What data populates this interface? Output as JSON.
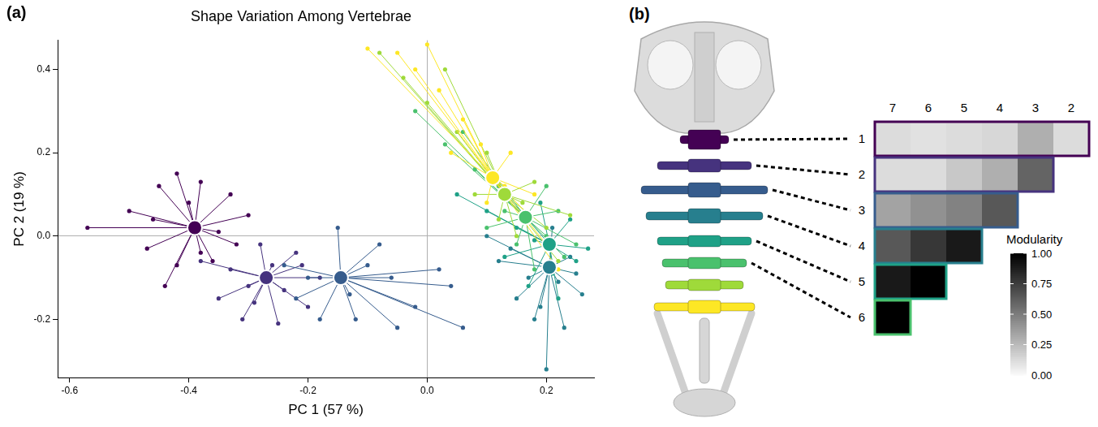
{
  "chart_data": [
    {
      "panel": "(a)",
      "type": "scatter",
      "title": "Shape Variation Among Vertebrae",
      "x_label": "PC 1 (57 %)",
      "y_label": "PC 2 (19 %)",
      "xlim": [
        -0.62,
        0.28
      ],
      "ylim": [
        -0.34,
        0.47
      ],
      "xticks": [
        -0.6,
        -0.4,
        -0.2,
        {
          "value": 0,
          "label": "0.0"
        },
        0.2
      ],
      "yticks": [
        -0.2,
        {
          "value": 0,
          "label": "0.0"
        },
        0.2,
        0.4
      ],
      "marker": "circle",
      "series": [
        {
          "color": "#440154",
          "centroid": [
            -0.39,
            0.02
          ],
          "x": [
            -0.57,
            -0.5,
            -0.45,
            -0.42,
            -0.38,
            -0.33,
            -0.3,
            -0.32,
            -0.36,
            -0.42,
            -0.47,
            -0.44,
            -0.38,
            -0.4,
            -0.35,
            -0.46
          ],
          "y": [
            0.02,
            0.06,
            0.12,
            0.15,
            0.13,
            0.1,
            0.05,
            -0.02,
            -0.06,
            -0.07,
            -0.03,
            -0.12,
            -0.04,
            0.08,
            0.01,
            0.04
          ]
        },
        {
          "color": "#46337E",
          "centroid": [
            -0.27,
            -0.1
          ],
          "x": [
            -0.38,
            -0.35,
            -0.31,
            -0.25,
            -0.2,
            -0.18,
            -0.22,
            -0.28,
            -0.3,
            -0.24,
            -0.33,
            -0.26,
            -0.21,
            -0.29
          ],
          "y": [
            -0.06,
            -0.15,
            -0.2,
            -0.21,
            -0.17,
            -0.1,
            -0.04,
            -0.02,
            -0.12,
            -0.13,
            -0.08,
            -0.07,
            -0.07,
            -0.16
          ]
        },
        {
          "color": "#365C8D",
          "centroid": [
            -0.145,
            -0.1
          ],
          "x": [
            -0.24,
            -0.22,
            -0.18,
            -0.12,
            -0.05,
            -0.02,
            0.04,
            0.02,
            -0.08,
            -0.15,
            -0.13,
            -0.1,
            -0.2,
            -0.06,
            0.06
          ],
          "y": [
            -0.07,
            -0.15,
            -0.2,
            -0.2,
            -0.22,
            -0.17,
            -0.12,
            -0.08,
            -0.02,
            0.02,
            -0.14,
            -0.07,
            -0.1,
            -0.1,
            -0.22
          ]
        },
        {
          "color": "#277F8E",
          "centroid": [
            0.205,
            -0.075
          ],
          "x": [
            0.1,
            0.12,
            0.15,
            0.18,
            0.2,
            0.23,
            0.26,
            0.24,
            0.21,
            0.17,
            0.22,
            0.14,
            0.19,
            0.25
          ],
          "y": [
            0.0,
            -0.06,
            -0.15,
            -0.2,
            -0.32,
            -0.22,
            -0.14,
            -0.05,
            0.02,
            -0.1,
            -0.11,
            -0.03,
            -0.17,
            -0.09
          ]
        },
        {
          "color": "#1FA187",
          "centroid": [
            0.205,
            -0.02
          ],
          "x": [
            0.05,
            0.1,
            0.13,
            0.17,
            0.22,
            0.25,
            0.24,
            0.19,
            0.15,
            0.21,
            0.27,
            0.12,
            0.18
          ],
          "y": [
            0.1,
            0.06,
            -0.05,
            -0.12,
            -0.15,
            -0.06,
            0.04,
            0.08,
            0.02,
            -0.09,
            -0.03,
            0.12,
            -0.01
          ]
        },
        {
          "color": "#4AC16D",
          "centroid": [
            0.165,
            0.045
          ],
          "x": [
            -0.02,
            0.03,
            0.08,
            0.12,
            0.2,
            0.23,
            0.18,
            0.15,
            0.1,
            0.22,
            0.2,
            0.13,
            0.25,
            0.06
          ],
          "y": [
            0.3,
            0.22,
            0.16,
            0.1,
            0.0,
            -0.05,
            -0.08,
            -0.02,
            0.02,
            0.06,
            0.12,
            0.06,
            -0.02,
            0.25
          ]
        },
        {
          "color": "#9FDA3A",
          "centroid": [
            0.13,
            0.1
          ],
          "x": [
            -0.08,
            -0.04,
            0.0,
            0.05,
            0.1,
            0.16,
            0.2,
            0.22,
            0.15,
            0.08,
            0.18,
            0.12,
            0.03,
            0.24
          ],
          "y": [
            0.44,
            0.38,
            0.32,
            0.25,
            0.2,
            0.08,
            0.02,
            -0.06,
            0.0,
            0.1,
            0.13,
            0.04,
            0.4,
            0.05
          ]
        },
        {
          "color": "#FDE725",
          "centroid": [
            0.11,
            0.14
          ],
          "x": [
            -0.1,
            -0.05,
            -0.02,
            0.02,
            0.06,
            0.09,
            0.13,
            0.17,
            0.2,
            0.22,
            0.04,
            0.14,
            0.0,
            0.18,
            0.1
          ],
          "y": [
            0.45,
            0.44,
            0.4,
            0.35,
            0.28,
            0.22,
            0.12,
            0.05,
            -0.02,
            -0.08,
            0.2,
            0.2,
            0.46,
            0.1,
            0.08
          ]
        }
      ]
    },
    {
      "panel": "(b)",
      "type": "heatmap",
      "columns": [
        7,
        6,
        5,
        4,
        3,
        2
      ],
      "rows": [
        1,
        2,
        3,
        4,
        5,
        6
      ],
      "cells": [
        [
          0.12,
          0.1,
          0.12,
          0.14,
          0.3,
          0.12
        ],
        [
          0.12,
          0.12,
          0.2,
          0.3,
          0.6
        ],
        [
          0.35,
          0.42,
          0.48,
          0.65
        ],
        [
          0.65,
          0.78,
          0.9
        ],
        [
          0.9,
          1.0
        ],
        [
          1.0
        ]
      ],
      "colors": [
        "#440154",
        "#46337E",
        "#365C8D",
        "#277F8E",
        "#1FA187",
        "#4AC16D",
        "#9FDA3A",
        "#FDE725"
      ],
      "colorbar": {
        "title": "Modularity",
        "range": [
          0,
          1
        ],
        "ticks": [
          {
            "value": 0,
            "label": "0.00"
          },
          {
            "value": 0.25,
            "label": "0.25"
          },
          {
            "value": 0.5,
            "label": "0.50"
          },
          {
            "value": 0.75,
            "label": "0.75"
          },
          {
            "value": 1,
            "label": "1.00"
          }
        ]
      }
    }
  ]
}
